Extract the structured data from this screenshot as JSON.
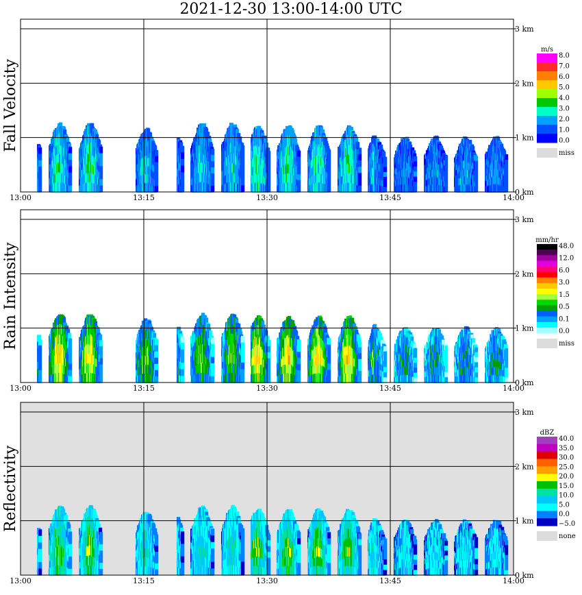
{
  "title": "2021-12-30   13:00-14:00 UTC",
  "time_labels": [
    "13:00",
    "13:15",
    "13:30",
    "13:45",
    "14:00"
  ],
  "height_labels": [
    "0 km",
    "1 km",
    "2 km",
    "3 km"
  ],
  "panels": [
    {
      "ylabel": "Fall Velocity",
      "legend_unit": "m/s",
      "legend_labels": [
        "8.0",
        "7.0",
        "6.0",
        "5.0",
        "4.0",
        "3.0",
        "2.0",
        "1.0",
        "0.0"
      ],
      "legend_colors": [
        "#ff00ff",
        "#ff2a2a",
        "#ff7f00",
        "#ffc800",
        "#a0ff00",
        "#00c800",
        "#00ffc8",
        "#00a0ff",
        "#0050ff",
        "#0000ff"
      ],
      "miss_label": "miss",
      "background": "#ffffff"
    },
    {
      "ylabel": "Rain Intensity",
      "legend_unit": "mm/hr",
      "legend_labels": [
        "48.0",
        "12.0",
        "6.0",
        "3.0",
        "1.5",
        "0.5",
        "0.1",
        "0.0"
      ],
      "legend_colors": [
        "#000000",
        "#500050",
        "#a000a0",
        "#e000e0",
        "#ff0080",
        "#ff0000",
        "#ff8000",
        "#ffc800",
        "#ffff00",
        "#a0ff40",
        "#00d800",
        "#00a000",
        "#0060ff",
        "#00a0ff",
        "#00ffff",
        "#a0ffff"
      ],
      "miss_label": "miss",
      "background": "#ffffff"
    },
    {
      "ylabel": "Reflectivity",
      "legend_unit": "dBZ",
      "legend_labels": [
        "40.0",
        "35.0",
        "30.0",
        "25.0",
        "20.0",
        "15.0",
        "10.0",
        "5.0",
        "0.0",
        "−5.0"
      ],
      "legend_colors": [
        "#a040c0",
        "#c000c0",
        "#e00000",
        "#ff6000",
        "#ffa000",
        "#ffff00",
        "#00c000",
        "#00e0a0",
        "#00c8ff",
        "#00ffff",
        "#0080ff",
        "#0000c0"
      ],
      "miss_label": "none",
      "background": "#e0e0e0"
    }
  ],
  "chart_data": {
    "type": "heatmap",
    "x_range": [
      "13:00",
      "14:00"
    ],
    "y_range_km": [
      0,
      3.2
    ],
    "x_ticks_min": [
      0,
      15,
      30,
      45,
      60
    ],
    "y_ticks_km": [
      0,
      1,
      2,
      3
    ],
    "grid": true,
    "echo_cells": [
      {
        "t_start": 2.0,
        "t_end": 10.5,
        "top_km": 1.25,
        "peak": "strong"
      },
      {
        "t_start": 14.0,
        "t_end": 17.0,
        "top_km": 1.15,
        "peak": "moderate"
      },
      {
        "t_start": 19.0,
        "t_end": 27.5,
        "top_km": 1.25,
        "peak": "moderate"
      },
      {
        "t_start": 28.0,
        "t_end": 43.0,
        "top_km": 1.2,
        "peak": "strong"
      },
      {
        "t_start": 43.0,
        "t_end": 60.0,
        "top_km": 1.0,
        "peak": "weak"
      }
    ]
  }
}
